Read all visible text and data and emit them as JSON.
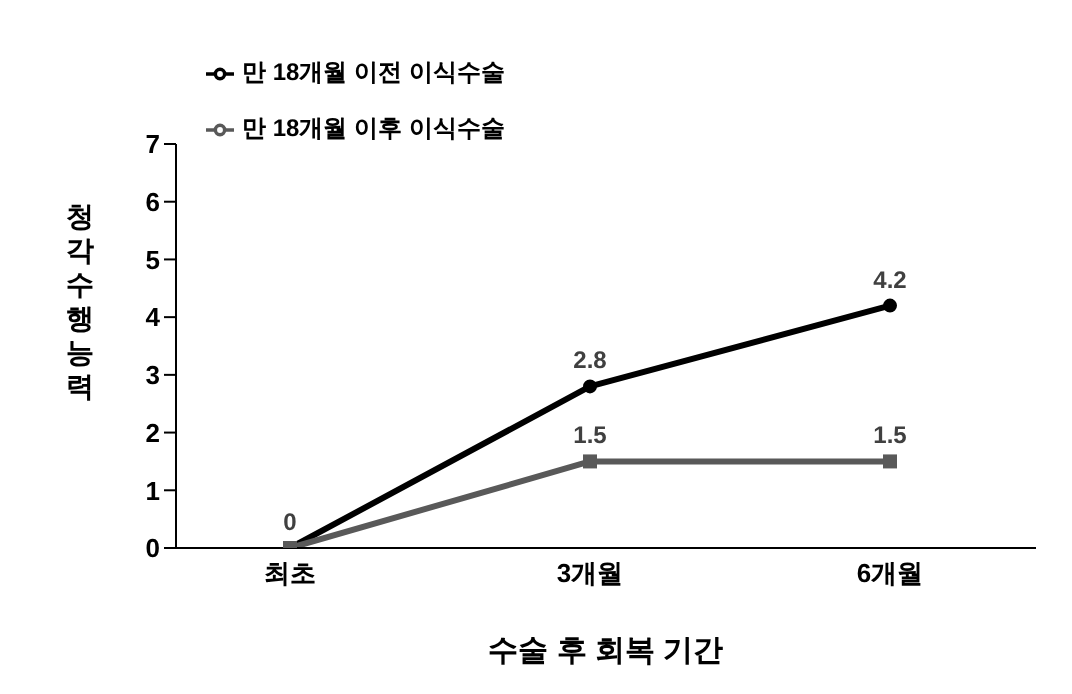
{
  "chart_data": {
    "type": "line",
    "xlabel": "수술 후 회복 기간",
    "ylabel": "청각수행능력",
    "categories": [
      "최초",
      "3개월",
      "6개월"
    ],
    "series": [
      {
        "name": "만 18개월 이전 이식수술",
        "color": "#000000",
        "marker": "circle",
        "values": [
          0,
          2.8,
          4.2
        ],
        "value_labels": [
          "0",
          "2.8",
          "4.2"
        ]
      },
      {
        "name": "만 18개월 이후 이식수술",
        "color": "#595959",
        "marker": "square",
        "values": [
          0,
          1.5,
          1.5
        ],
        "value_labels": [
          null,
          "1.5",
          "1.5"
        ]
      }
    ],
    "ylim": [
      0,
      7
    ],
    "yticks": [
      0,
      1,
      2,
      3,
      4,
      5,
      6,
      7
    ],
    "grid": false,
    "legend": "top left"
  }
}
